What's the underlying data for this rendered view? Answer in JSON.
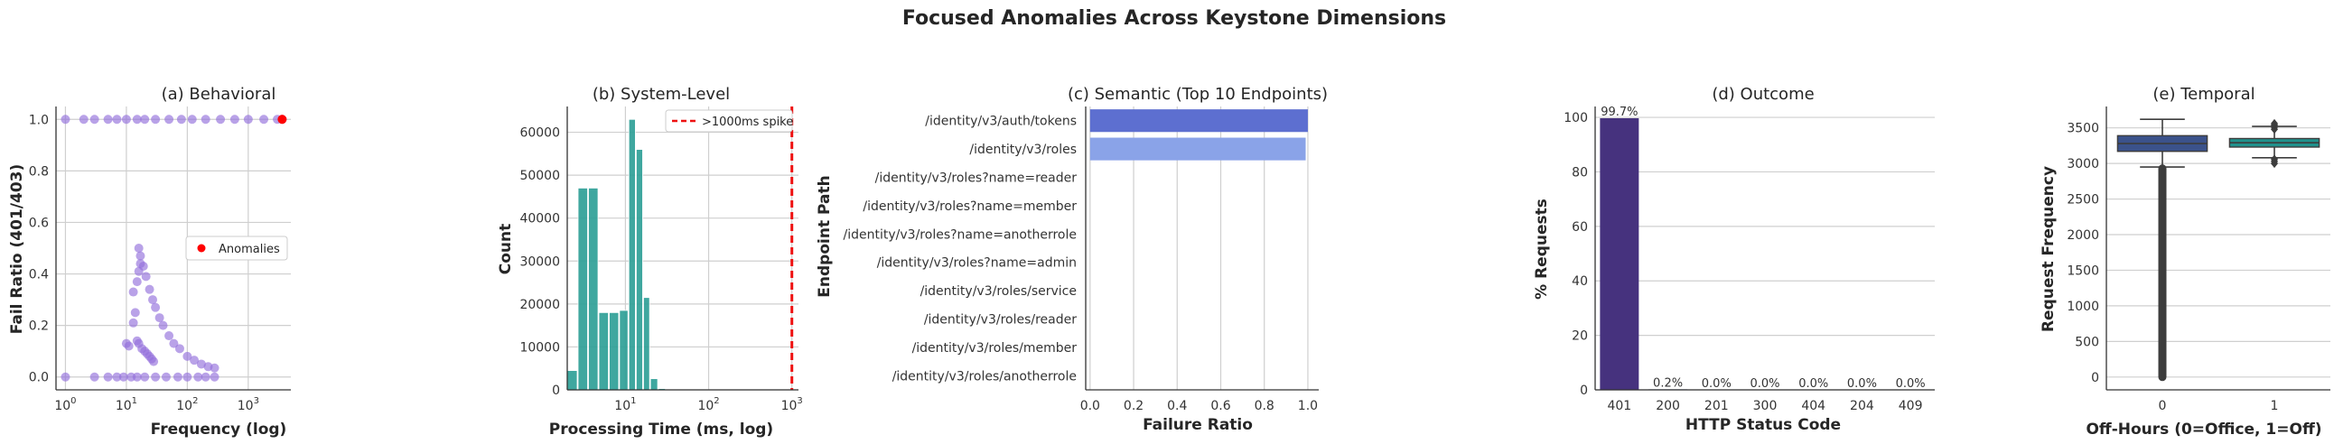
{
  "figure": {
    "title": "Focused Anomalies Across Keystone Dimensions"
  },
  "chart_data": [
    {
      "type": "scatter",
      "title": "(a) Behavioral",
      "xlabel": "Frequency (log)",
      "ylabel": "Fail Ratio (401/403)",
      "xscale": "log",
      "xlim": [
        0.7,
        5000
      ],
      "ylim": [
        -0.05,
        1.05
      ],
      "xticks": [
        {
          "v": 1,
          "base": "10",
          "exp": "0"
        },
        {
          "v": 10,
          "base": "10",
          "exp": "1"
        },
        {
          "v": 100,
          "base": "10",
          "exp": "2"
        },
        {
          "v": 1000,
          "base": "10",
          "exp": "3"
        }
      ],
      "yticks": [
        "0.0",
        "0.2",
        "0.4",
        "0.6",
        "0.8",
        "1.0"
      ],
      "ytick_values": [
        0,
        0.2,
        0.4,
        0.6,
        0.8,
        1.0
      ],
      "legend": {
        "entries": [
          "Anomalies"
        ],
        "loc": "center-right"
      },
      "series": [
        {
          "color": "#9370db",
          "points": [
            [
              1,
              1
            ],
            [
              2,
              1
            ],
            [
              3,
              1
            ],
            [
              5,
              1
            ],
            [
              7,
              1
            ],
            [
              10,
              1
            ],
            [
              15,
              1
            ],
            [
              20,
              1
            ],
            [
              30,
              1
            ],
            [
              50,
              1
            ],
            [
              80,
              1
            ],
            [
              120,
              1
            ],
            [
              200,
              1
            ],
            [
              350,
              1
            ],
            [
              600,
              1
            ],
            [
              1000,
              1
            ],
            [
              1800,
              1
            ],
            [
              3000,
              1
            ],
            [
              3600,
              1
            ],
            [
              1,
              0
            ],
            [
              3,
              0
            ],
            [
              5,
              0
            ],
            [
              7,
              0
            ],
            [
              9,
              0
            ],
            [
              12,
              0
            ],
            [
              15,
              0
            ],
            [
              20,
              0
            ],
            [
              30,
              0
            ],
            [
              45,
              0
            ],
            [
              70,
              0
            ],
            [
              100,
              0
            ],
            [
              150,
              0
            ],
            [
              200,
              0
            ],
            [
              280,
              0
            ],
            [
              16,
              0.5
            ],
            [
              17,
              0.47
            ],
            [
              19,
              0.43
            ],
            [
              21,
              0.39
            ],
            [
              24,
              0.34
            ],
            [
              27,
              0.3
            ],
            [
              30,
              0.27
            ],
            [
              35,
              0.23
            ],
            [
              40,
              0.2
            ],
            [
              50,
              0.16
            ],
            [
              60,
              0.13
            ],
            [
              75,
              0.11
            ],
            [
              100,
              0.08
            ],
            [
              130,
              0.065
            ],
            [
              170,
              0.05
            ],
            [
              220,
              0.04
            ],
            [
              280,
              0.035
            ],
            [
              13,
              0.33
            ],
            [
              15,
              0.37
            ],
            [
              16,
              0.41
            ],
            [
              17,
              0.44
            ],
            [
              14,
              0.25
            ],
            [
              13,
              0.21
            ],
            [
              16,
              0.13
            ],
            [
              18,
              0.11
            ],
            [
              20,
              0.1
            ],
            [
              22,
              0.09
            ],
            [
              24,
              0.08
            ],
            [
              26,
              0.07
            ],
            [
              28,
              0.06
            ],
            [
              10,
              0.13
            ],
            [
              11,
              0.12
            ],
            [
              15,
              0.14
            ]
          ]
        },
        {
          "name": "Anomalies",
          "color": "#ff0000",
          "points": [
            [
              3600,
              1.0
            ]
          ]
        }
      ]
    },
    {
      "type": "bar",
      "title": "(b) System-Level",
      "xlabel": "Processing Time (ms, log)",
      "ylabel": "Count",
      "xscale": "log",
      "xlim": [
        2,
        1200
      ],
      "ylim": [
        0,
        66000
      ],
      "xticks": [
        {
          "v": 10,
          "base": "10",
          "exp": "1"
        },
        {
          "v": 100,
          "base": "10",
          "exp": "2"
        },
        {
          "v": 1000,
          "base": "10",
          "exp": "3"
        }
      ],
      "yticks": [
        "0",
        "10000",
        "20000",
        "30000",
        "40000",
        "50000",
        "60000"
      ],
      "ytick_values": [
        0,
        10000,
        20000,
        30000,
        40000,
        50000,
        60000
      ],
      "color": "#2a9d95",
      "bins": [
        {
          "from": 2.0,
          "to": 2.7,
          "count": 4500
        },
        {
          "from": 2.7,
          "to": 3.6,
          "count": 47000
        },
        {
          "from": 3.6,
          "to": 4.8,
          "count": 47000
        },
        {
          "from": 4.8,
          "to": 6.4,
          "count": 18000
        },
        {
          "from": 6.4,
          "to": 8.5,
          "count": 18000
        },
        {
          "from": 8.5,
          "to": 11.0,
          "count": 18500
        },
        {
          "from": 11.0,
          "to": 13.5,
          "count": 63000
        },
        {
          "from": 13.5,
          "to": 16.5,
          "count": 56000
        },
        {
          "from": 16.5,
          "to": 20.0,
          "count": 21500
        },
        {
          "from": 20.0,
          "to": 25.0,
          "count": 2600
        },
        {
          "from": 25.0,
          "to": 31.0,
          "count": 300
        }
      ],
      "vline": {
        "x": 1000,
        "label": ">1000ms spike",
        "color": "#ee1111"
      },
      "legend": {
        "entries": [
          ">1000ms spike"
        ],
        "loc": "upper-right"
      }
    },
    {
      "type": "bar",
      "orientation": "horizontal",
      "title": "(c) Semantic (Top 10 Endpoints)",
      "xlabel": "Failure Ratio",
      "ylabel": "Endpoint Path",
      "xlim": [
        -0.02,
        1.05
      ],
      "xticks": [
        "0.0",
        "0.2",
        "0.4",
        "0.6",
        "0.8",
        "1.0"
      ],
      "xtick_values": [
        0,
        0.2,
        0.4,
        0.6,
        0.8,
        1.0
      ],
      "categories": [
        "/identity/v3/auth/tokens",
        "/identity/v3/roles",
        "/identity/v3/roles?name=reader",
        "/identity/v3/roles?name=member",
        "/identity/v3/roles?name=anotherrole",
        "/identity/v3/roles?name=admin",
        "/identity/v3/roles/service",
        "/identity/v3/roles/reader",
        "/identity/v3/roles/member",
        "/identity/v3/roles/anotherrole"
      ],
      "values": [
        1.0,
        0.99,
        0,
        0,
        0,
        0,
        0,
        0,
        0,
        0
      ],
      "colors": [
        "#5d6fd0",
        "#8aa3e8",
        "#a8c1f0",
        "#b6cdf2",
        "#c3d6f3",
        "#cfdcf2",
        "#d9e2f0",
        "#e0e4ec",
        "#e6e6e8",
        "#ececec"
      ]
    },
    {
      "type": "bar",
      "title": "(d) Outcome",
      "xlabel": "HTTP Status Code",
      "ylabel": "% Requests",
      "ylim": [
        0,
        104
      ],
      "yticks": [
        "0",
        "20",
        "40",
        "60",
        "80",
        "100"
      ],
      "ytick_values": [
        0,
        20,
        40,
        60,
        80,
        100
      ],
      "categories": [
        "401",
        "200",
        "201",
        "300",
        "404",
        "204",
        "409"
      ],
      "values": [
        99.7,
        0.2,
        0.0,
        0.0,
        0.0,
        0.0,
        0.0
      ],
      "data_labels": [
        "99.7%",
        "0.2%",
        "0.0%",
        "0.0%",
        "0.0%",
        "0.0%",
        "0.0%"
      ],
      "colors": [
        "#46327e",
        "#3b528b",
        "#2c728e",
        "#21918c",
        "#28ae80",
        "#5ec962",
        "#addc30"
      ]
    },
    {
      "type": "box",
      "title": "(e) Temporal",
      "xlabel": "Off-Hours (0=Office, 1=Off)",
      "ylabel": "Request Frequency",
      "ylim": [
        -180,
        3800
      ],
      "yticks": [
        "0",
        "500",
        "1000",
        "1500",
        "2000",
        "2500",
        "3000",
        "3500"
      ],
      "ytick_values": [
        0,
        500,
        1000,
        1500,
        2000,
        2500,
        3000,
        3500
      ],
      "categories": [
        "0",
        "1"
      ],
      "boxes": [
        {
          "color": "#3b528b",
          "whislo": 2950,
          "q1": 3170,
          "med": 3280,
          "q3": 3390,
          "whishi": 3620,
          "fliers_range": [
            0,
            2930
          ]
        },
        {
          "color": "#21918c",
          "whislo": 3080,
          "q1": 3230,
          "med": 3290,
          "q3": 3350,
          "whishi": 3520,
          "fliers": [
            3000,
            3030,
            3060,
            3480,
            3510,
            3540,
            3560
          ]
        }
      ]
    }
  ]
}
